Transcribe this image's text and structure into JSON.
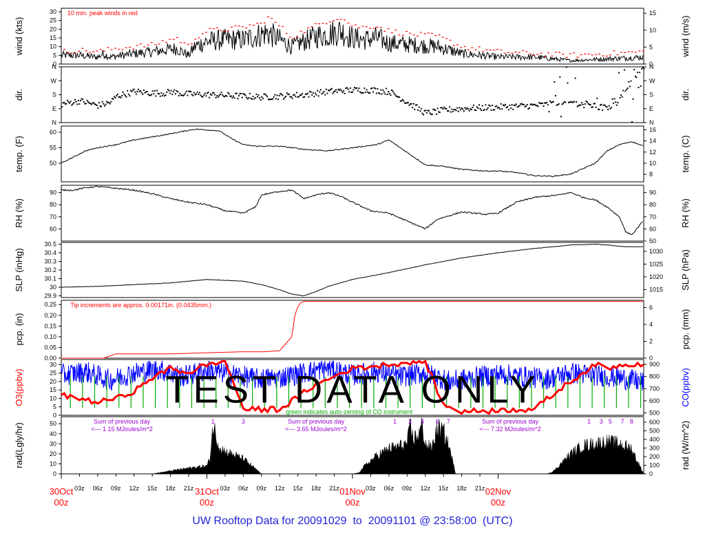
{
  "footer": {
    "prefix": "UW Rooftop Data for",
    "start": "20091029",
    "to": "to",
    "end": "20091101",
    "at": "@",
    "time": "23:58:00",
    "tz": "(UTC)"
  },
  "overlay_text": "TEST DATA ONLY",
  "chart_data": [
    {
      "type": "line",
      "id": "wind",
      "ylabel_left": "wind (kts)",
      "ylabel_right": "wind (m/s)",
      "ylim": [
        0,
        32
      ],
      "yticks": [
        0,
        5,
        10,
        15,
        20,
        25,
        30
      ],
      "right_ticks": [
        0,
        5,
        10,
        15
      ],
      "right_factor": 1.9438,
      "annotation": "10 min. peak winds in red",
      "colors": {
        "primary": "#000000",
        "peak": "#ff0000"
      },
      "series": [
        {
          "name": "mean",
          "x": [
            0,
            3,
            6,
            7,
            8,
            12,
            15,
            17,
            19,
            21,
            22,
            24,
            27,
            30,
            31,
            33,
            34,
            36,
            38,
            40,
            42,
            44,
            46,
            48,
            50,
            52,
            54,
            58,
            62,
            66,
            72,
            78,
            84,
            90,
            96
          ],
          "y": [
            5,
            5,
            4,
            6,
            4,
            6,
            7,
            8,
            9,
            5,
            10,
            13,
            14,
            14,
            15,
            17,
            18,
            14,
            10,
            13,
            16,
            17,
            19,
            15,
            14,
            15,
            12,
            11,
            10,
            6,
            4,
            4,
            2,
            3,
            4
          ]
        },
        {
          "name": "peak",
          "x": [
            0,
            3,
            6,
            9,
            12,
            15,
            17,
            19,
            21,
            22,
            24,
            27,
            30,
            31,
            33,
            34,
            36,
            38,
            40,
            42,
            44,
            46,
            48,
            50,
            52,
            54,
            58,
            62,
            66,
            72,
            78,
            84,
            90,
            96
          ],
          "y": [
            7,
            8,
            7,
            9,
            10,
            11,
            13,
            15,
            10,
            15,
            19,
            20,
            21,
            22,
            23,
            27,
            22,
            15,
            19,
            22,
            25,
            27,
            22,
            21,
            22,
            19,
            17,
            16,
            10,
            7,
            6,
            5,
            6,
            7
          ]
        }
      ]
    },
    {
      "type": "scatter",
      "id": "dir",
      "ylabel_left": "dir.",
      "ylabel_right": "dir.",
      "ylim": [
        0,
        360
      ],
      "ytick_labels": [
        "N",
        "E",
        "S",
        "W",
        "N"
      ],
      "ytick_values": [
        0,
        90,
        180,
        270,
        360
      ],
      "colors": {
        "primary": "#000000"
      },
      "series": [
        {
          "name": "dir",
          "x": [
            0,
            3,
            6,
            8,
            9,
            12,
            15,
            17,
            18,
            20,
            24,
            27,
            30,
            33,
            36,
            40,
            44,
            48,
            51,
            54,
            60,
            63,
            66,
            72,
            78,
            84,
            90,
            96
          ],
          "y": [
            120,
            140,
            110,
            130,
            170,
            200,
            190,
            190,
            200,
            185,
            180,
            175,
            170,
            165,
            170,
            180,
            200,
            210,
            210,
            200,
            60,
            80,
            90,
            100,
            110,
            130,
            90,
            360
          ]
        }
      ]
    },
    {
      "type": "line",
      "id": "temp",
      "ylabel_left": "temp. (F)",
      "ylabel_right": "temp. (C)",
      "ylim": [
        44,
        62
      ],
      "yticks": [
        50,
        55,
        60
      ],
      "right_ticks": [
        8,
        10,
        12,
        14,
        16
      ],
      "colors": {
        "primary": "#000000"
      },
      "series": [
        {
          "name": "temp",
          "x": [
            0,
            2,
            4,
            6,
            9,
            12,
            15,
            18,
            22,
            26,
            28,
            30,
            32,
            36,
            40,
            44,
            48,
            52,
            54,
            60,
            63,
            66,
            70,
            72,
            75,
            78,
            81,
            84,
            88,
            90,
            92,
            94,
            96
          ],
          "y": [
            50,
            52,
            54,
            55,
            56,
            57.5,
            58.5,
            59.5,
            61,
            60.5,
            58,
            56,
            55.5,
            55.5,
            54.5,
            54,
            55,
            56,
            57.5,
            49.5,
            49,
            48,
            47.5,
            47.5,
            47,
            46,
            45.8,
            46.5,
            50,
            54,
            56,
            57,
            55.5
          ]
        }
      ]
    },
    {
      "type": "line",
      "id": "rh",
      "ylabel_left": "RH (%)",
      "ylabel_right": "RH (%)",
      "ylim": [
        50,
        96
      ],
      "yticks": [
        60,
        70,
        80,
        90
      ],
      "right_ticks": [
        50,
        60,
        70,
        80,
        90
      ],
      "colors": {
        "primary": "#000000"
      },
      "series": [
        {
          "name": "rh",
          "x": [
            0,
            2,
            4,
            6,
            8,
            12,
            15,
            18,
            21,
            24,
            27,
            30,
            32,
            33,
            36,
            38,
            40,
            42,
            44,
            46,
            48,
            51,
            54,
            60,
            62,
            66,
            70,
            72,
            75,
            78,
            80,
            82,
            84,
            86,
            88,
            90,
            92,
            93,
            94,
            96
          ],
          "y": [
            92,
            92,
            94,
            95,
            94,
            92,
            89,
            85,
            82,
            80,
            75,
            73,
            78,
            88,
            91,
            92,
            85,
            88,
            90,
            87,
            82,
            75,
            73,
            60,
            68,
            74,
            72,
            73,
            82,
            86,
            87,
            88,
            90,
            86,
            84,
            78,
            70,
            58,
            55,
            67
          ]
        }
      ]
    },
    {
      "type": "line",
      "id": "slp",
      "ylabel_left": "SLP (inHg)",
      "ylabel_right": "SLP (hPa)",
      "ylim": [
        29.88,
        30.52
      ],
      "yticks": [
        29.9,
        30.0,
        30.1,
        30.2,
        30.3,
        30.4,
        30.5
      ],
      "right_ticks": [
        1015,
        1020,
        1025,
        1030
      ],
      "colors": {
        "primary": "#000000"
      },
      "series": [
        {
          "name": "slp",
          "x": [
            0,
            6,
            12,
            18,
            24,
            30,
            33,
            36,
            38,
            40,
            42,
            44,
            48,
            54,
            60,
            66,
            72,
            78,
            84,
            88,
            90,
            93,
            96
          ],
          "y": [
            30.0,
            30.01,
            30.03,
            30.05,
            30.09,
            30.07,
            30.03,
            29.97,
            29.92,
            29.9,
            29.95,
            30.01,
            30.09,
            30.17,
            30.26,
            30.34,
            30.4,
            30.45,
            30.49,
            30.5,
            30.49,
            30.47,
            30.47
          ]
        }
      ]
    },
    {
      "type": "line",
      "id": "pcp",
      "ylabel_left": "pcp. (in)",
      "ylabel_right": "pcp. (mm)",
      "ylim": [
        0,
        0.27
      ],
      "yticks": [
        0.0,
        0.05,
        0.1,
        0.15,
        0.2,
        0.25
      ],
      "yticks_labels": [
        "0.00",
        "0.05",
        "0.10",
        "0.15",
        "0.20",
        "0.25"
      ],
      "right_ticks": [
        0,
        2,
        4,
        6
      ],
      "annotation": "Tip increments are approx. 0.00171in. (0.0435mm.)",
      "colors": {
        "primary": "#ff0000"
      },
      "series": [
        {
          "name": "pcp",
          "x": [
            0,
            7,
            9,
            18,
            24,
            30,
            33.5,
            36,
            38,
            38.5,
            39,
            39.5,
            40,
            42,
            60,
            72,
            84,
            96
          ],
          "y": [
            0,
            0,
            0.02,
            0.02,
            0.025,
            0.03,
            0.03,
            0.035,
            0.1,
            0.2,
            0.24,
            0.26,
            0.265,
            0.265,
            0.265,
            0.265,
            0.265,
            0.265
          ]
        }
      ]
    },
    {
      "type": "line",
      "id": "o3co",
      "ylabel_left": "O3(ppbv)",
      "ylabel_right": "CO(ppbv)",
      "ylim": [
        0,
        33
      ],
      "yticks": [
        0,
        5,
        10,
        15,
        20,
        25,
        30
      ],
      "right_ticks": [
        500,
        600,
        700,
        800,
        900
      ],
      "annotation": "green indicates auto-zeroing of CO instrument",
      "colors": {
        "o3": "#ff0000",
        "co": "#0000ff",
        "zero": "#00aa00"
      },
      "series": [
        {
          "name": "O3",
          "x": [
            0,
            3,
            6,
            9,
            12,
            15,
            18,
            21,
            24,
            27,
            30,
            33,
            36,
            42,
            48,
            54,
            60,
            63,
            66,
            72,
            78,
            84,
            88,
            90,
            93,
            96
          ],
          "y": [
            12,
            10,
            8,
            10,
            14,
            22,
            28,
            25,
            30,
            32,
            4,
            3,
            4,
            18,
            28,
            30,
            32,
            6,
            2,
            3,
            4,
            20,
            30,
            28,
            30,
            31
          ]
        },
        {
          "name": "CO",
          "x": [
            0,
            4,
            8,
            12,
            16,
            20,
            24,
            28,
            32,
            36,
            40,
            44,
            48,
            52,
            56,
            60,
            64,
            68,
            72,
            76,
            80,
            84,
            88,
            92,
            96
          ],
          "y": [
            810,
            840,
            770,
            830,
            860,
            800,
            850,
            820,
            780,
            790,
            830,
            870,
            810,
            840,
            800,
            830,
            760,
            790,
            820,
            800,
            780,
            830,
            810,
            790,
            750
          ]
        }
      ]
    },
    {
      "type": "area",
      "id": "rad",
      "ylabel_left": "rad(Lgly/hr)",
      "ylabel_right": "rad (W/m^2)",
      "ylim": [
        0,
        57
      ],
      "yticks": [
        0,
        10,
        20,
        30,
        40,
        50
      ],
      "right_ticks": [
        0,
        100,
        200,
        300,
        400,
        500,
        600
      ],
      "colors": {
        "primary": "#000000",
        "note": "#9900cc"
      },
      "day_notes": [
        {
          "x": 5,
          "line1": "Sum of previous day",
          "line2": "<--- 1.15 MJoules/m^2"
        },
        {
          "x": 37,
          "line1": "Sum of previous day",
          "line2": "<--- 3.65 MJoules/m^2"
        },
        {
          "x": 69,
          "line1": "Sum of previous day",
          "line2": "<--- 7.32 MJoules/m^2"
        }
      ],
      "hour_marks": [
        {
          "x": 25,
          "label": "1"
        },
        {
          "x": 30,
          "label": "3"
        },
        {
          "x": 55,
          "label": "1"
        },
        {
          "x": 57.5,
          "label": "2"
        },
        {
          "x": 59.5,
          "label": "4"
        },
        {
          "x": 62,
          "label": "6"
        },
        {
          "x": 63.8,
          "label": "7"
        },
        {
          "x": 87,
          "label": "1"
        },
        {
          "x": 89,
          "label": "3"
        },
        {
          "x": 90.5,
          "label": "5"
        },
        {
          "x": 92.5,
          "label": "7"
        },
        {
          "x": 94,
          "label": "8"
        }
      ],
      "series": [
        {
          "name": "rad",
          "x": [
            0,
            15,
            16,
            18,
            20,
            24,
            24.5,
            25,
            26,
            27,
            28,
            30,
            31,
            32,
            33,
            48,
            49,
            50,
            52,
            54,
            56,
            57,
            57.5,
            58,
            59,
            59.5,
            60,
            61,
            62,
            63,
            64,
            65,
            80,
            81,
            82,
            84,
            86,
            88,
            90,
            92,
            94,
            95,
            96
          ],
          "y": [
            0,
            0,
            1,
            3,
            5,
            8,
            15,
            48,
            28,
            22,
            20,
            15,
            10,
            5,
            0,
            0,
            1,
            8,
            18,
            25,
            28,
            30,
            45,
            35,
            40,
            48,
            30,
            25,
            45,
            42,
            25,
            0,
            0,
            2,
            8,
            20,
            28,
            30,
            32,
            30,
            25,
            12,
            0
          ]
        }
      ]
    }
  ],
  "x_axis": {
    "range": [
      0,
      96
    ],
    "tick_labels": [
      "03z",
      "06z",
      "09z",
      "12z",
      "15z",
      "18z",
      "21z",
      "03z",
      "06z",
      "09z",
      "12z",
      "15z",
      "18z",
      "21z",
      "03z",
      "06z",
      "09z",
      "12z",
      "15z",
      "18z",
      "21z"
    ],
    "tick_hours": [
      3,
      6,
      9,
      12,
      15,
      18,
      21,
      27,
      30,
      33,
      36,
      39,
      42,
      45,
      51,
      54,
      57,
      60,
      63,
      66,
      69
    ],
    "day_labels": [
      {
        "hour": 0,
        "line1": "30Oct",
        "line2": "00z"
      },
      {
        "hour": 24,
        "line1": "31Oct",
        "line2": "00z"
      },
      {
        "hour": 48,
        "line1": "01Nov",
        "line2": "00z"
      },
      {
        "hour": 72,
        "line1": "02Nov",
        "line2": "00z"
      }
    ]
  }
}
